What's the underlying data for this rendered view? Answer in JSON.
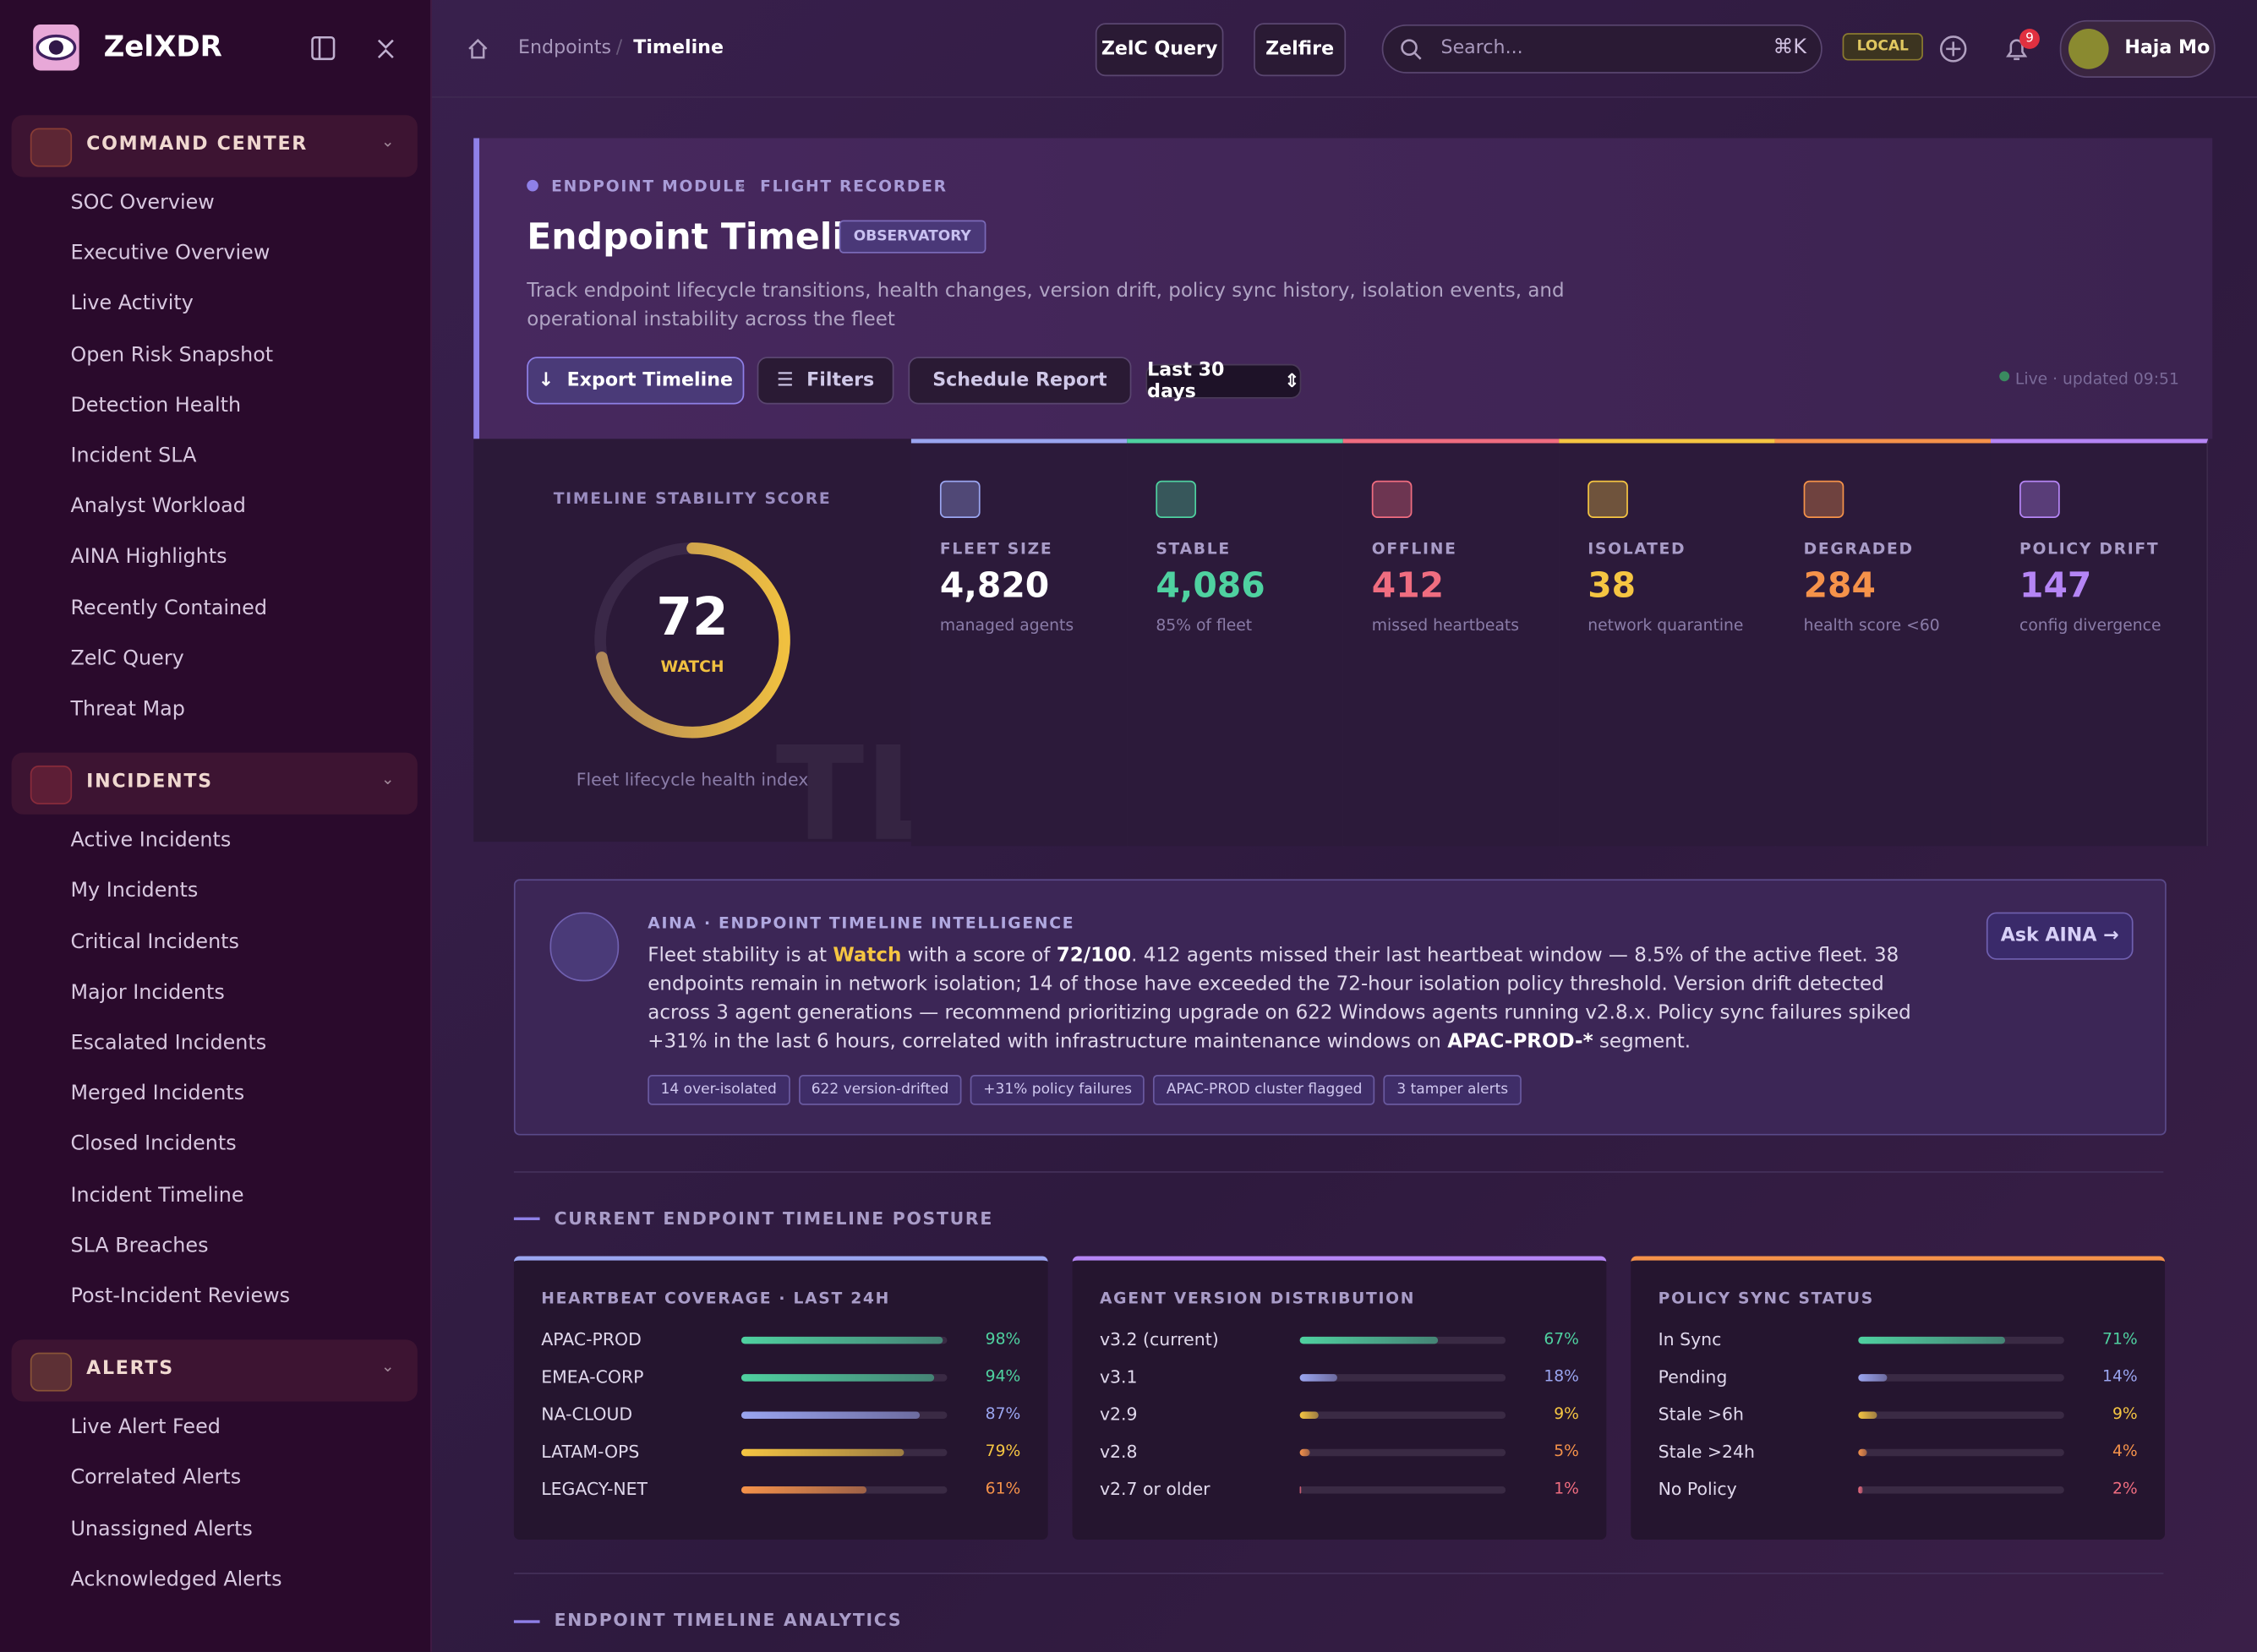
{
  "sidebar": {
    "brand": "ZelXDR",
    "sections": [
      {
        "title": "COMMAND CENTER",
        "color": "#e0703a",
        "items": [
          "SOC Overview",
          "Executive Overview",
          "Live Activity",
          "Open Risk Snapshot",
          "Detection Health",
          "Incident SLA",
          "Analyst Workload",
          "AINA Highlights",
          "Recently Contained",
          "ZelC Query",
          "Threat Map"
        ]
      },
      {
        "title": "INCIDENTS",
        "color": "#e04848",
        "items": [
          "Active Incidents",
          "My Incidents",
          "Critical Incidents",
          "Major Incidents",
          "Escalated Incidents",
          "Merged Incidents",
          "Closed Incidents",
          "Incident Timeline",
          "SLA Breaches",
          "Post-Incident Reviews"
        ]
      },
      {
        "title": "ALERTS",
        "color": "#e0a040",
        "items": [
          "Live Alert Feed",
          "Correlated Alerts",
          "Unassigned Alerts",
          "Acknowledged Alerts"
        ]
      }
    ]
  },
  "topbar": {
    "breadcrumb": [
      "Endpoints",
      "Timeline"
    ],
    "buttons": [
      "ZelC Query",
      "Zelfire"
    ],
    "search": "Search...",
    "shortcut": "⌘K",
    "env": "LOCAL",
    "notifications": "9",
    "user": "Haja Mo"
  },
  "hero": {
    "eyebrow": [
      "ENDPOINT MODULE",
      "FLIGHT RECORDER"
    ],
    "title": "Endpoint Timeline",
    "badge": "OBSERVATORY",
    "description": "Track endpoint lifecycle transitions, health changes, version drift, policy sync history, isolation events, and operational instability across the fleet",
    "actions": [
      "Export Timeline",
      "Filters",
      "Schedule Report"
    ],
    "range": "Last 30 days",
    "live": "Live · updated 09:51"
  },
  "score": {
    "label": "TIMELINE STABILITY SCORE",
    "value": 72,
    "max": 100,
    "status": "WATCH",
    "caption": "Fleet lifecycle health index",
    "watermark": "TL"
  },
  "stats": [
    {
      "label": "FLEET SIZE",
      "value": "4,820",
      "sub": "managed agents",
      "color": "#ffffff",
      "accent": "#9aa5f0"
    },
    {
      "label": "STABLE",
      "value": "4,086",
      "sub": "85% of fleet",
      "color": "#4fd1a0",
      "accent": "#4fd1a0"
    },
    {
      "label": "OFFLINE",
      "value": "412",
      "sub": "missed heartbeats",
      "color": "#f06d80",
      "accent": "#f06d80"
    },
    {
      "label": "ISOLATED",
      "value": "38",
      "sub": "network quarantine",
      "color": "#f5c542",
      "accent": "#f5c542"
    },
    {
      "label": "DEGRADED",
      "value": "284",
      "sub": "health score <60",
      "color": "#f5924a",
      "accent": "#f5924a"
    },
    {
      "label": "POLICY DRIFT",
      "value": "147",
      "sub": "config divergence",
      "color": "#b585f5",
      "accent": "#b585f5"
    }
  ],
  "aina": {
    "title": "AINA · ENDPOINT TIMELINE INTELLIGENCE",
    "text": [
      {
        "text": "Fleet stability is at ",
        "style": "plain"
      },
      {
        "text": "Watch",
        "style": "highlight"
      },
      {
        "text": " with a score of ",
        "style": "plain"
      },
      {
        "text": "72/100",
        "style": "bold"
      },
      {
        "text": ". 412 agents missed their last heartbeat window — 8.5% of the active fleet. 38 endpoints remain in network isolation; 14 of those have exceeded the 72-hour isolation policy threshold. Version drift detected across 3 agent generations — recommend prioritizing upgrade on 622 Windows agents running v2.8.x. Policy sync failures spiked +31% in the last 6 hours, correlated with infrastructure maintenance windows on ",
        "style": "plain"
      },
      {
        "text": "APAC-PROD-*",
        "style": "bold"
      },
      {
        "text": " segment.",
        "style": "plain"
      }
    ],
    "tags": [
      "14 over-isolated",
      "622 version-drifted",
      "+31% policy failures",
      "APAC-PROD cluster flagged",
      "3 tamper alerts"
    ],
    "button": "Ask AINA →"
  },
  "posture": {
    "heading": "CURRENT ENDPOINT TIMELINE POSTURE",
    "panels": [
      {
        "title": "HEARTBEAT COVERAGE · LAST 24H",
        "accent": "#9aa5f0",
        "rows": [
          {
            "label": "APAC-PROD",
            "pct": {
              "value": 98,
              "label": "98%"
            },
            "color": "#4fd1a0"
          },
          {
            "label": "EMEA-CORP",
            "pct": {
              "value": 94,
              "label": "94%"
            },
            "color": "#4fd1a0"
          },
          {
            "label": "NA-CLOUD",
            "pct": {
              "value": 87,
              "label": "87%"
            },
            "color": "#9aa5f0"
          },
          {
            "label": "LATAM-OPS",
            "pct": {
              "value": 79,
              "label": "79%"
            },
            "color": "#f5c542"
          },
          {
            "label": "LEGACY-NET",
            "pct": {
              "value": 61,
              "label": "61%"
            },
            "color": "#f5924a"
          }
        ]
      },
      {
        "title": "AGENT VERSION DISTRIBUTION",
        "accent": "#b585f5",
        "rows": [
          {
            "label": "v3.2 (current)",
            "pct": {
              "value": 67,
              "label": "67%"
            },
            "color": "#4fd1a0"
          },
          {
            "label": "v3.1",
            "pct": {
              "value": 18,
              "label": "18%"
            },
            "color": "#9aa5f0"
          },
          {
            "label": "v2.9",
            "pct": {
              "value": 9,
              "label": "9%"
            },
            "color": "#f5c542"
          },
          {
            "label": "v2.8",
            "pct": {
              "value": 5,
              "label": "5%"
            },
            "color": "#f5924a"
          },
          {
            "label": "v2.7 or older",
            "pct": {
              "value": 1,
              "label": "1%"
            },
            "color": "#f06d80"
          }
        ]
      },
      {
        "title": "POLICY SYNC STATUS",
        "accent": "#f5924a",
        "rows": [
          {
            "label": "In Sync",
            "pct": {
              "value": 71,
              "label": "71%"
            },
            "color": "#4fd1a0"
          },
          {
            "label": "Pending",
            "pct": {
              "value": 14,
              "label": "14%"
            },
            "color": "#9aa5f0"
          },
          {
            "label": "Stale >6h",
            "pct": {
              "value": 9,
              "label": "9%"
            },
            "color": "#f5c542"
          },
          {
            "label": "Stale >24h",
            "pct": {
              "value": 4,
              "label": "4%"
            },
            "color": "#f5924a"
          },
          {
            "label": "No Policy",
            "pct": {
              "value": 2,
              "label": "2%"
            },
            "color": "#f06d80"
          }
        ]
      }
    ]
  },
  "analytics": {
    "heading": "ENDPOINT TIMELINE ANALYTICS"
  }
}
